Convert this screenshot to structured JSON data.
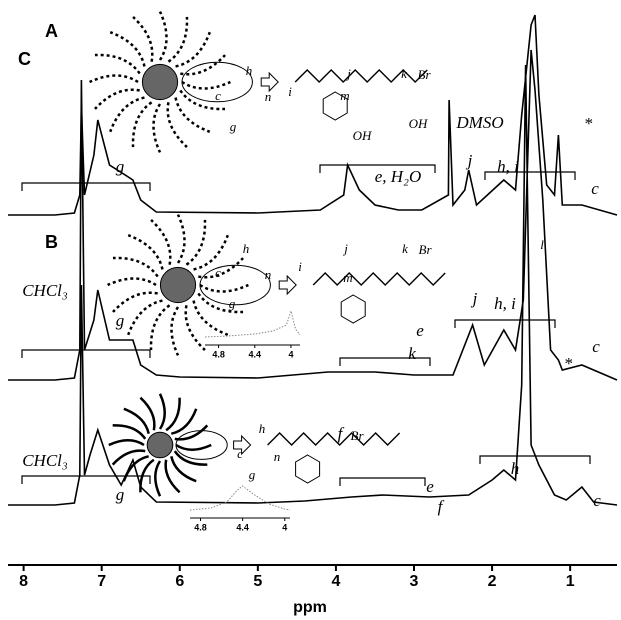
{
  "chart_data": {
    "type": "line",
    "xlabel": "ppm",
    "xlim": [
      8.2,
      0.4
    ],
    "xticks": [
      8,
      7,
      6,
      5,
      4,
      3,
      2,
      1
    ],
    "series": [
      {
        "name": "A",
        "color": "#000000",
        "x": [
          8.2,
          7.6,
          7.35,
          7.28,
          7.26,
          7.22,
          7.15,
          7.05,
          6.9,
          6.75,
          6.6,
          6.5,
          6.3,
          5.0,
          4.4,
          3.8,
          3.4,
          2.8,
          2.3,
          2.0,
          1.85,
          1.7,
          1.62,
          1.57,
          1.5,
          1.4,
          1.2,
          1.05,
          0.85,
          0.7,
          0.4
        ],
        "values": [
          0,
          0,
          2,
          30,
          220,
          30,
          50,
          75,
          40,
          20,
          45,
          18,
          3,
          2,
          4,
          8,
          10,
          8,
          10,
          25,
          35,
          25,
          120,
          440,
          60,
          40,
          10,
          5,
          18,
          3,
          0
        ],
        "annotations": [
          "CHCl₃",
          "g",
          "f",
          "e",
          "h",
          "c",
          "h",
          "c",
          "g",
          "n",
          "f",
          "Br"
        ],
        "inset": {
          "xticks": [
            4.8,
            4.4,
            4.0
          ],
          "xlim": [
            4.9,
            3.95
          ],
          "x": [
            4.9,
            4.7,
            4.55,
            4.45,
            4.4,
            4.3,
            4.15,
            4.0,
            3.95
          ],
          "values": [
            2,
            4,
            10,
            22,
            26,
            18,
            8,
            3,
            2
          ]
        }
      },
      {
        "name": "B",
        "color": "#000000",
        "x": [
          8.2,
          7.6,
          7.35,
          7.28,
          7.26,
          7.22,
          7.1,
          7.05,
          6.9,
          6.6,
          6.5,
          6.3,
          6.0,
          5.0,
          4.1,
          3.5,
          3.0,
          2.5,
          2.25,
          2.1,
          1.85,
          1.7,
          1.6,
          1.5,
          1.45,
          1.35,
          1.25,
          1.15,
          1.1,
          0.85,
          0.4
        ],
        "values": [
          0,
          0,
          2,
          30,
          300,
          30,
          60,
          90,
          40,
          40,
          15,
          5,
          3,
          2,
          8,
          8,
          5,
          5,
          55,
          15,
          50,
          30,
          80,
          330,
          290,
          180,
          30,
          20,
          10,
          15,
          0
        ],
        "annotations": [
          "CHCl₃",
          "g",
          "k",
          "e",
          "j",
          "h, i",
          "*",
          "c",
          "h",
          "c",
          "g",
          "n",
          "i",
          "j",
          "m",
          "k",
          "Br"
        ],
        "inset": {
          "xticks": [
            4.8,
            4.4,
            4.0
          ],
          "xlim": [
            4.95,
            3.9
          ],
          "x": [
            4.95,
            4.7,
            4.4,
            4.2,
            4.05,
            4.0,
            3.95,
            3.9
          ],
          "values": [
            2,
            3,
            5,
            8,
            14,
            28,
            10,
            4
          ]
        }
      },
      {
        "name": "C",
        "color": "#000000",
        "x": [
          8.2,
          7.6,
          7.35,
          7.28,
          7.26,
          7.22,
          7.1,
          7.05,
          6.9,
          6.6,
          6.5,
          6.3,
          5.0,
          4.2,
          3.9,
          3.85,
          3.7,
          3.5,
          3.2,
          2.9,
          2.56,
          2.55,
          2.5,
          2.35,
          2.3,
          2.2,
          1.85,
          1.7,
          1.62,
          1.5,
          1.45,
          1.4,
          1.3,
          1.2,
          1.15,
          1.1,
          0.85,
          0.4
        ],
        "values": [
          0,
          0,
          2,
          20,
          110,
          20,
          60,
          95,
          50,
          35,
          15,
          3,
          2,
          5,
          20,
          50,
          25,
          10,
          5,
          5,
          20,
          115,
          10,
          25,
          45,
          10,
          35,
          25,
          100,
          190,
          200,
          120,
          30,
          20,
          80,
          10,
          10,
          0
        ],
        "annotations": [
          "g",
          "e, H₂O",
          "DMSO",
          "j",
          "h, i",
          "l",
          "*",
          "c",
          "h",
          "c",
          "g",
          "i",
          "n",
          "j",
          "m",
          "k",
          "Br",
          "OH",
          "OH"
        ]
      }
    ]
  }
}
